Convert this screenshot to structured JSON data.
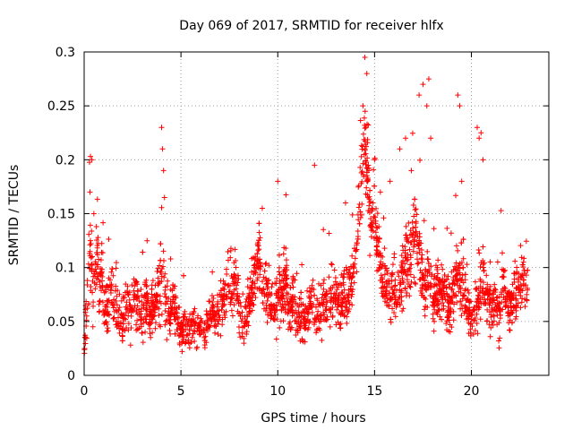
{
  "chart_data": {
    "type": "scatter",
    "title": "Day 069 of 2017, SRMTID for receiver hlfx",
    "xlabel": "GPS time / hours",
    "ylabel": "SRMTID / TECUs",
    "xlim": [
      0,
      24
    ],
    "ylim": [
      0,
      0.3
    ],
    "x_ticks": [
      0,
      5,
      10,
      15,
      20
    ],
    "y_ticks": [
      0,
      0.05,
      0.1,
      0.15,
      0.2,
      0.25,
      0.3
    ],
    "x_tick_labels": [
      "0",
      "5",
      "10",
      "15",
      "20"
    ],
    "y_tick_labels": [
      "0",
      "0.05",
      "0.1",
      "0.15",
      "0.2",
      "0.25",
      "0.3"
    ],
    "grid": true,
    "marker": "plus",
    "color": "#ff0000",
    "x_extent": [
      0,
      22.9
    ],
    "series": [
      {
        "x": [
          0.0,
          0.1,
          0.2,
          0.3,
          0.4,
          0.5,
          0.6,
          0.7,
          0.8,
          0.9,
          1.0,
          1.2,
          1.4,
          1.6,
          1.8,
          2.0,
          2.2,
          2.4,
          2.6,
          2.8,
          3.0,
          3.2,
          3.4,
          3.6,
          3.8,
          3.9,
          4.0,
          4.1,
          4.2,
          4.4,
          4.6,
          4.8,
          5.0,
          5.2,
          5.4,
          5.6,
          5.8,
          6.0,
          6.2,
          6.4,
          6.6,
          6.8,
          7.0,
          7.2,
          7.4,
          7.6,
          7.8,
          8.0,
          8.2,
          8.4,
          8.6,
          8.8,
          9.0,
          9.2,
          9.4,
          9.6,
          9.8,
          10.0,
          10.2,
          10.4,
          10.6,
          10.8,
          11.0,
          11.2,
          11.4,
          11.6,
          11.8,
          12.0,
          12.2,
          12.4,
          12.6,
          12.8,
          13.0,
          13.2,
          13.4,
          13.6,
          13.8,
          14.0,
          14.1,
          14.2,
          14.3,
          14.4,
          14.5,
          14.6,
          14.7,
          14.8,
          14.9,
          15.0,
          15.2,
          15.4,
          15.6,
          15.8,
          16.0,
          16.2,
          16.4,
          16.6,
          16.8,
          17.0,
          17.2,
          17.4,
          17.6,
          17.8,
          18.0,
          18.2,
          18.4,
          18.6,
          18.8,
          19.0,
          19.2,
          19.4,
          19.6,
          19.8,
          20.0,
          20.2,
          20.4,
          20.6,
          20.8,
          21.0,
          21.2,
          21.4,
          21.6,
          21.8,
          22.0,
          22.2,
          22.4,
          22.6,
          22.8
        ],
        "y": [
          0.03,
          0.05,
          0.08,
          0.12,
          0.1,
          0.07,
          0.09,
          0.11,
          0.08,
          0.1,
          0.07,
          0.06,
          0.08,
          0.07,
          0.06,
          0.05,
          0.07,
          0.06,
          0.08,
          0.06,
          0.05,
          0.07,
          0.05,
          0.06,
          0.08,
          0.07,
          0.1,
          0.09,
          0.07,
          0.06,
          0.07,
          0.05,
          0.04,
          0.05,
          0.04,
          0.05,
          0.04,
          0.05,
          0.04,
          0.05,
          0.06,
          0.05,
          0.07,
          0.06,
          0.08,
          0.07,
          0.09,
          0.06,
          0.05,
          0.06,
          0.07,
          0.09,
          0.11,
          0.09,
          0.08,
          0.07,
          0.06,
          0.08,
          0.07,
          0.09,
          0.06,
          0.07,
          0.05,
          0.06,
          0.05,
          0.06,
          0.07,
          0.05,
          0.06,
          0.07,
          0.06,
          0.08,
          0.07,
          0.06,
          0.08,
          0.07,
          0.09,
          0.1,
          0.13,
          0.16,
          0.18,
          0.2,
          0.22,
          0.19,
          0.17,
          0.15,
          0.16,
          0.14,
          0.12,
          0.09,
          0.08,
          0.07,
          0.08,
          0.07,
          0.09,
          0.11,
          0.1,
          0.14,
          0.12,
          0.1,
          0.08,
          0.09,
          0.07,
          0.08,
          0.07,
          0.08,
          0.06,
          0.07,
          0.1,
          0.09,
          0.08,
          0.07,
          0.05,
          0.06,
          0.07,
          0.09,
          0.07,
          0.06,
          0.07,
          0.06,
          0.08,
          0.07,
          0.06,
          0.07,
          0.08,
          0.09,
          0.08
        ],
        "spread": [
          0.02,
          0.03,
          0.04,
          0.05,
          0.04,
          0.03,
          0.04,
          0.04,
          0.03,
          0.03,
          0.03,
          0.03,
          0.03,
          0.03,
          0.03,
          0.03,
          0.03,
          0.03,
          0.03,
          0.03,
          0.03,
          0.03,
          0.02,
          0.03,
          0.03,
          0.04,
          0.06,
          0.04,
          0.03,
          0.03,
          0.03,
          0.02,
          0.02,
          0.02,
          0.02,
          0.02,
          0.02,
          0.02,
          0.02,
          0.02,
          0.02,
          0.02,
          0.03,
          0.03,
          0.03,
          0.03,
          0.03,
          0.03,
          0.02,
          0.03,
          0.03,
          0.04,
          0.04,
          0.03,
          0.03,
          0.03,
          0.03,
          0.04,
          0.03,
          0.03,
          0.02,
          0.03,
          0.02,
          0.03,
          0.02,
          0.02,
          0.03,
          0.02,
          0.03,
          0.03,
          0.03,
          0.03,
          0.03,
          0.03,
          0.03,
          0.03,
          0.03,
          0.03,
          0.04,
          0.04,
          0.05,
          0.05,
          0.05,
          0.05,
          0.05,
          0.04,
          0.04,
          0.04,
          0.04,
          0.03,
          0.03,
          0.03,
          0.03,
          0.03,
          0.04,
          0.04,
          0.04,
          0.05,
          0.05,
          0.04,
          0.03,
          0.04,
          0.03,
          0.03,
          0.03,
          0.03,
          0.03,
          0.03,
          0.04,
          0.04,
          0.03,
          0.03,
          0.02,
          0.03,
          0.03,
          0.04,
          0.03,
          0.03,
          0.03,
          0.03,
          0.03,
          0.03,
          0.03,
          0.03,
          0.03,
          0.03,
          0.03
        ],
        "outliers_x": [
          0.3,
          0.4,
          0.5,
          4.0,
          4.05,
          4.1,
          4.15,
          10.0,
          11.9,
          14.4,
          14.5,
          14.6,
          14.55,
          14.5,
          14.7,
          15.0,
          15.3,
          16.3,
          16.6,
          17.3,
          17.5,
          17.7,
          17.8,
          17.9,
          19.3,
          19.4,
          19.5,
          20.3,
          20.4,
          20.5,
          20.6,
          9.2,
          13.5,
          15.8,
          16.9
        ],
        "outliers_y": [
          0.17,
          0.2,
          0.15,
          0.23,
          0.21,
          0.19,
          0.165,
          0.18,
          0.195,
          0.25,
          0.295,
          0.28,
          0.23,
          0.21,
          0.19,
          0.2,
          0.17,
          0.21,
          0.22,
          0.26,
          0.27,
          0.25,
          0.275,
          0.22,
          0.26,
          0.25,
          0.18,
          0.23,
          0.22,
          0.225,
          0.2,
          0.155,
          0.16,
          0.18,
          0.19
        ]
      }
    ]
  }
}
